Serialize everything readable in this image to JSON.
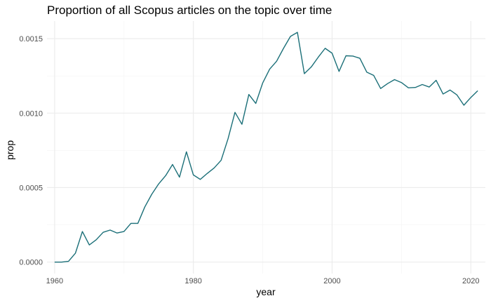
{
  "chart_data": {
    "type": "line",
    "title": "Proportion of all Scopus articles on the topic over time",
    "xlabel": "year",
    "ylabel": "prop",
    "xlim": [
      1958.9,
      2022.1
    ],
    "ylim": [
      -7.7e-05,
      0.001618
    ],
    "x_ticks": [
      1960,
      1980,
      2000,
      2020
    ],
    "x_tick_labels": [
      "1960",
      "1980",
      "2000",
      "2020"
    ],
    "y_ticks": [
      0.0,
      0.0005,
      0.001,
      0.0015
    ],
    "y_tick_labels": [
      "0.0000",
      "0.0005",
      "0.0010",
      "0.0015"
    ],
    "grid": true,
    "legend": "none",
    "line_color": "#1b6f78",
    "series": [
      {
        "x": [
          1960,
          1961,
          1962,
          1963,
          1964,
          1965,
          1966,
          1967,
          1968,
          1969,
          1970,
          1971,
          1972,
          1973,
          1974,
          1975,
          1976,
          1977,
          1978,
          1979,
          1980,
          1981,
          1982,
          1983,
          1984,
          1985,
          1986,
          1987,
          1988,
          1989,
          1990,
          1991,
          1992,
          1993,
          1994,
          1995,
          1996,
          1997,
          1998,
          1999,
          2000,
          2001,
          2002,
          2003,
          2004,
          2005,
          2006,
          2007,
          2008,
          2009,
          2010,
          2011,
          2012,
          2013,
          2014,
          2015,
          2016,
          2017,
          2018,
          2019,
          2020,
          2021
        ],
        "values": [
          0.0,
          0.0,
          5e-06,
          6e-05,
          0.000205,
          0.000115,
          0.00015,
          0.0002,
          0.000215,
          0.000195,
          0.000205,
          0.00026,
          0.00026,
          0.00037,
          0.000455,
          0.000525,
          0.00058,
          0.000655,
          0.00057,
          0.00074,
          0.000585,
          0.000555,
          0.000595,
          0.000632,
          0.000683,
          0.000828,
          0.001005,
          0.000925,
          0.001125,
          0.001065,
          0.001203,
          0.001295,
          0.001348,
          0.001435,
          0.001515,
          0.001542,
          0.001265,
          0.00131,
          0.001375,
          0.001435,
          0.001402,
          0.00128,
          0.001385,
          0.001383,
          0.001368,
          0.001275,
          0.001253,
          0.001165,
          0.001198,
          0.001225,
          0.001205,
          0.00117,
          0.001172,
          0.001192,
          0.001175,
          0.00122,
          0.001128,
          0.001155,
          0.001122,
          0.001053,
          0.001105,
          0.00115
        ]
      }
    ]
  }
}
